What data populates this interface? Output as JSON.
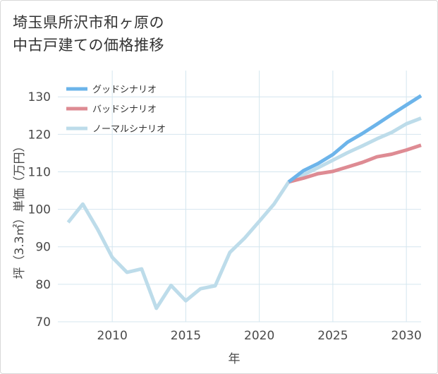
{
  "title_line1": "埼玉県所沢市和ヶ原の",
  "title_line2": "中古戸建ての価格推移",
  "chart_data": {
    "type": "line",
    "xlabel": "年",
    "ylabel": "坪（3.3㎡）単価（万円）",
    "xlim": [
      2006.3,
      2031
    ],
    "ylim": [
      70,
      137
    ],
    "xticks": [
      2010,
      2015,
      2020,
      2025,
      2030
    ],
    "yticks": [
      70,
      80,
      90,
      100,
      110,
      120,
      130
    ],
    "legend_position": "top-left",
    "series": [
      {
        "name": "グッドシナリオ",
        "color": "#6cb4ea",
        "x": [
          2022,
          2023,
          2024,
          2025,
          2026,
          2027,
          2028,
          2029,
          2030,
          2031
        ],
        "values": [
          107.3,
          110.3,
          112.2,
          114.6,
          117.9,
          120.2,
          122.7,
          125.3,
          127.8,
          130.3
        ]
      },
      {
        "name": "バッドシナリオ",
        "color": "#de8b93",
        "x": [
          2022,
          2023,
          2024,
          2025,
          2026,
          2027,
          2028,
          2029,
          2030,
          2031
        ],
        "values": [
          107.3,
          108.3,
          109.5,
          110.1,
          111.3,
          112.5,
          114.0,
          114.7,
          115.8,
          117.1
        ]
      },
      {
        "name": "ノーマルシナリオ",
        "color": "#bddcea",
        "x": [
          2007,
          2008,
          2009,
          2010,
          2011,
          2012,
          2013,
          2014,
          2015,
          2016,
          2017,
          2018,
          2019,
          2020,
          2021,
          2022,
          2023,
          2024,
          2025,
          2026,
          2027,
          2028,
          2029,
          2030,
          2031
        ],
        "values": [
          96.5,
          101.4,
          94.7,
          87.2,
          83.2,
          84.1,
          73.6,
          79.7,
          75.6,
          78.8,
          79.6,
          88.5,
          92.3,
          96.8,
          101.4,
          107.3,
          109.2,
          111.1,
          113.1,
          115.1,
          116.9,
          118.8,
          120.5,
          122.8,
          124.3
        ]
      }
    ]
  }
}
